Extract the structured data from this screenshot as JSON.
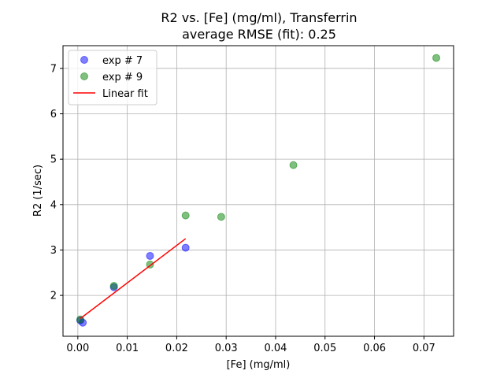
{
  "chart_data": {
    "type": "scatter",
    "title_line1": "R2 vs. [Fe] (mg/ml), Transferrin",
    "title_line2": "average RMSE (fit): 0.25",
    "xlabel": "[Fe] (mg/ml)",
    "ylabel": "R2 (1/sec)",
    "xlim": [
      -0.003,
      0.076
    ],
    "ylim": [
      1.1,
      7.5
    ],
    "grid": true,
    "legend_position": "top-left",
    "x_ticks": [
      0.0,
      0.01,
      0.02,
      0.03,
      0.04,
      0.05,
      0.06,
      0.07
    ],
    "x_tick_labels": [
      "0.00",
      "0.01",
      "0.02",
      "0.03",
      "0.04",
      "0.05",
      "0.06",
      "0.07"
    ],
    "y_ticks": [
      2,
      3,
      4,
      5,
      6,
      7
    ],
    "y_tick_labels": [
      "2",
      "3",
      "4",
      "5",
      "6",
      "7"
    ],
    "series": [
      {
        "name": "exp # 7",
        "kind": "scatter",
        "color": "#0000ff",
        "points": [
          {
            "x": 0.0005,
            "y": 1.45
          },
          {
            "x": 0.001,
            "y": 1.4
          },
          {
            "x": 0.0073,
            "y": 2.18
          },
          {
            "x": 0.0146,
            "y": 2.87
          },
          {
            "x": 0.0218,
            "y": 3.05
          }
        ]
      },
      {
        "name": "exp # 9",
        "kind": "scatter",
        "color": "#008000",
        "points": [
          {
            "x": 0.0005,
            "y": 1.47
          },
          {
            "x": 0.0073,
            "y": 2.21
          },
          {
            "x": 0.0146,
            "y": 2.68
          },
          {
            "x": 0.0218,
            "y": 3.76
          },
          {
            "x": 0.029,
            "y": 3.73
          },
          {
            "x": 0.0436,
            "y": 4.87
          },
          {
            "x": 0.0725,
            "y": 7.23
          }
        ]
      },
      {
        "name": "Linear fit",
        "kind": "line",
        "color": "#ff0000",
        "points": [
          {
            "x": 0.0005,
            "y": 1.49
          },
          {
            "x": 0.0218,
            "y": 3.25
          }
        ]
      }
    ]
  }
}
